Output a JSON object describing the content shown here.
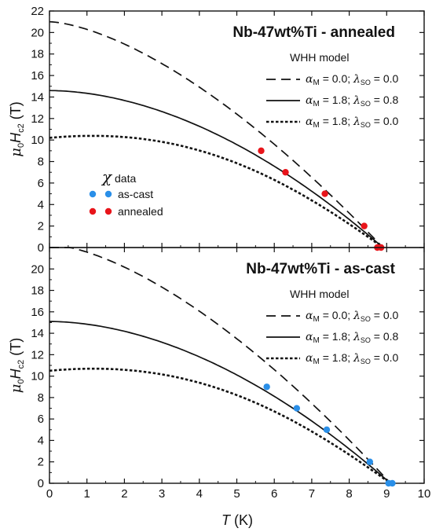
{
  "chart_data": [
    {
      "type": "scatter",
      "title": "Nb-47wt%Ti - annealed",
      "xlim": [
        0,
        10
      ],
      "ylim": [
        0,
        22
      ],
      "x_ticks": [
        "0",
        "1",
        "2",
        "3",
        "4",
        "5",
        "6",
        "7",
        "8",
        "9",
        "10"
      ],
      "y_ticks": [
        "0",
        "2",
        "4",
        "6",
        "8",
        "10",
        "12",
        "14",
        "16",
        "18",
        "20",
        "22"
      ],
      "legend_title": "WHH model",
      "legend_position": "top-right",
      "model_curves": [
        {
          "alpha": "0.0",
          "lambda": "0.0",
          "style": "dashed",
          "Hc2_0": 21.0,
          "Tc": 8.9
        },
        {
          "alpha": "1.8",
          "lambda": "0.8",
          "style": "solid",
          "Hc2_0": 14.6,
          "Tc": 8.9
        },
        {
          "alpha": "1.8",
          "lambda": "0.0",
          "style": "dotted",
          "Hc2_0": 10.2,
          "Tc": 8.9
        }
      ],
      "chi_legend": {
        "title_symbol": "χ",
        "title_text": "data",
        "entries": [
          "as-cast",
          "annealed"
        ]
      },
      "series": [
        {
          "name": "annealed",
          "color": "#e8141a",
          "points": [
            [
              5.65,
              9.0
            ],
            [
              6.3,
              7.0
            ],
            [
              7.35,
              5.0
            ],
            [
              8.4,
              2.0
            ],
            [
              8.75,
              0.0
            ],
            [
              8.85,
              0.0
            ]
          ]
        }
      ]
    },
    {
      "type": "scatter",
      "title": "Nb-47wt%Ti - as-cast",
      "xlim": [
        0,
        10
      ],
      "ylim": [
        0,
        22
      ],
      "x_ticks": [
        "0",
        "1",
        "2",
        "3",
        "4",
        "5",
        "6",
        "7",
        "8",
        "9",
        "10"
      ],
      "y_ticks": [
        "0",
        "2",
        "4",
        "6",
        "8",
        "10",
        "12",
        "14",
        "16",
        "18",
        "20"
      ],
      "legend_title": "WHH model",
      "legend_position": "top-right",
      "model_curves": [
        {
          "alpha": "0.0",
          "lambda": "0.0",
          "style": "dashed",
          "Hc2_0": 22.3,
          "Tc": 9.1
        },
        {
          "alpha": "1.8",
          "lambda": "0.8",
          "style": "solid",
          "Hc2_0": 15.1,
          "Tc": 9.1
        },
        {
          "alpha": "1.8",
          "lambda": "0.0",
          "style": "dotted",
          "Hc2_0": 10.5,
          "Tc": 9.1
        }
      ],
      "series": [
        {
          "name": "as-cast",
          "color": "#2a8fe8",
          "points": [
            [
              5.8,
              9.0
            ],
            [
              6.6,
              7.0
            ],
            [
              7.4,
              5.0
            ],
            [
              8.55,
              2.0
            ],
            [
              9.05,
              0.0
            ],
            [
              9.15,
              0.0
            ]
          ]
        }
      ]
    }
  ],
  "axes": {
    "x_label": "T (K)",
    "y_label": "μ0Hc2 (T)"
  }
}
